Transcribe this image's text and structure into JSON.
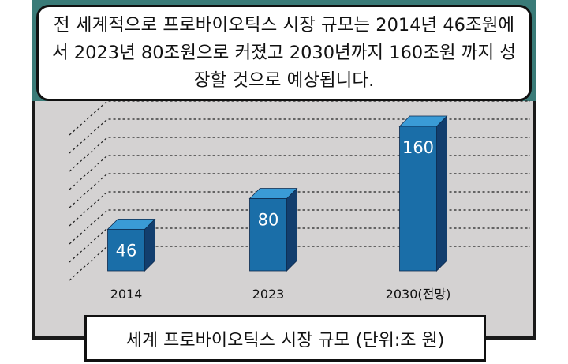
{
  "headline": "전 세계적으로 프로바이오틱스 시장 규모는 2014년 46조원에서 2023년 80조원으로 커졌고 2030년까지 160조원 까지 성장할 것으로 예상됩니다.",
  "caption": "세계 프로바이오틱스 시장 규모 (단위:조 원)",
  "colors": {
    "bar_front": "#1a6ea8",
    "bar_top": "#3a9bd6",
    "bar_side": "#123e6e",
    "panel": "#d4d2d2",
    "band": "#3a7b78"
  },
  "chart_data": {
    "type": "bar",
    "categories": [
      "2014",
      "2023",
      "2030(전망)"
    ],
    "values": [
      46,
      80,
      160
    ],
    "data_labels": [
      "46",
      "80",
      "160"
    ],
    "ylim": [
      0,
      160
    ],
    "grid": true,
    "style": "3d"
  }
}
